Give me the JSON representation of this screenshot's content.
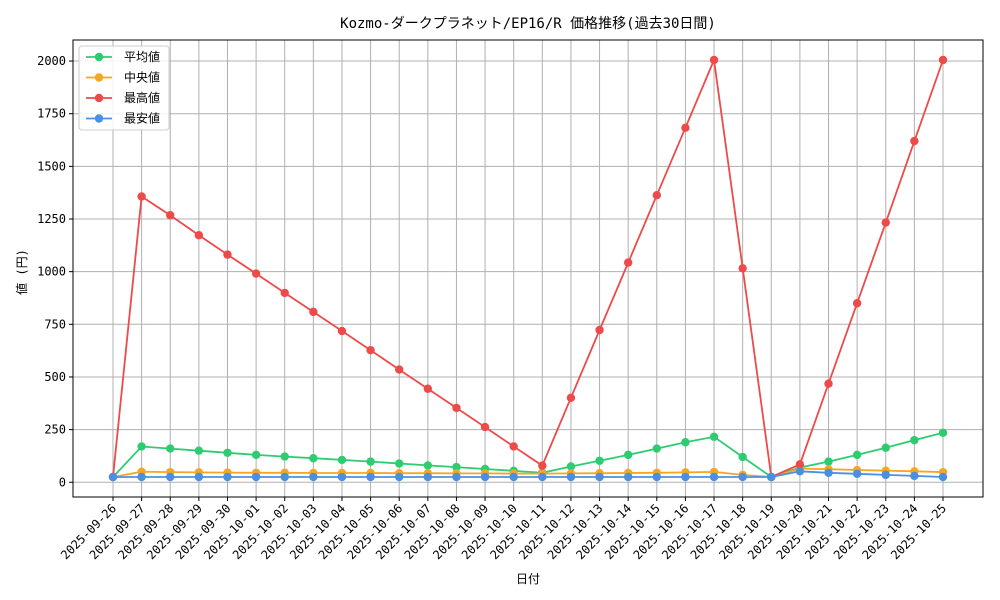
{
  "chart_data": {
    "type": "line",
    "title": "Kozmo-ダークプラネット/EP16/R 価格推移(過去30日間)",
    "xlabel": "日付",
    "ylabel": "値 (円)",
    "ylim": [
      -70,
      2100
    ],
    "yticks": [
      0,
      250,
      500,
      750,
      1000,
      1250,
      1500,
      1750,
      2000
    ],
    "grid": true,
    "legend_position": "top-left",
    "categories": [
      "2025-09-26",
      "2025-09-27",
      "2025-09-28",
      "2025-09-29",
      "2025-09-30",
      "2025-10-01",
      "2025-10-02",
      "2025-10-03",
      "2025-10-04",
      "2025-10-05",
      "2025-10-06",
      "2025-10-07",
      "2025-10-08",
      "2025-10-09",
      "2025-10-10",
      "2025-10-11",
      "2025-10-12",
      "2025-10-13",
      "2025-10-14",
      "2025-10-15",
      "2025-10-16",
      "2025-10-17",
      "2025-10-18",
      "2025-10-19",
      "2025-10-20",
      "2025-10-21",
      "2025-10-22",
      "2025-10-23",
      "2025-10-24",
      "2025-10-25"
    ],
    "series": [
      {
        "name": "平均値",
        "color": "#2ecc71",
        "values": [
          25,
          170,
          160,
          150,
          140,
          130,
          122,
          114,
          106,
          98,
          89,
          80,
          72,
          63,
          54,
          45,
          75,
          102,
          130,
          160,
          190,
          216,
          120,
          25,
          70,
          98,
          130,
          164,
          200,
          235
        ]
      },
      {
        "name": "中央値",
        "color": "#f5a623",
        "values": [
          25,
          50,
          48,
          47,
          46,
          45,
          45,
          44,
          44,
          44,
          43,
          43,
          42,
          42,
          41,
          41,
          42,
          43,
          44,
          45,
          47,
          49,
          35,
          25,
          65,
          62,
          58,
          55,
          52,
          48
        ]
      },
      {
        "name": "最高値",
        "color": "#ef4a4a",
        "values": [
          25,
          1357,
          1268,
          1173,
          1081,
          991,
          899,
          809,
          718,
          627,
          535,
          444,
          353,
          262,
          170,
          79,
          401,
          723,
          1043,
          1363,
          1683,
          2005,
          1016,
          25,
          85,
          468,
          850,
          1233,
          1620,
          2005
        ]
      },
      {
        "name": "最安値",
        "color": "#4a90e2",
        "values": [
          25,
          25,
          25,
          25,
          25,
          25,
          25,
          25,
          25,
          25,
          25,
          25,
          25,
          25,
          25,
          25,
          25,
          25,
          25,
          25,
          25,
          25,
          25,
          25,
          52,
          45,
          40,
          35,
          30,
          25
        ]
      }
    ]
  }
}
